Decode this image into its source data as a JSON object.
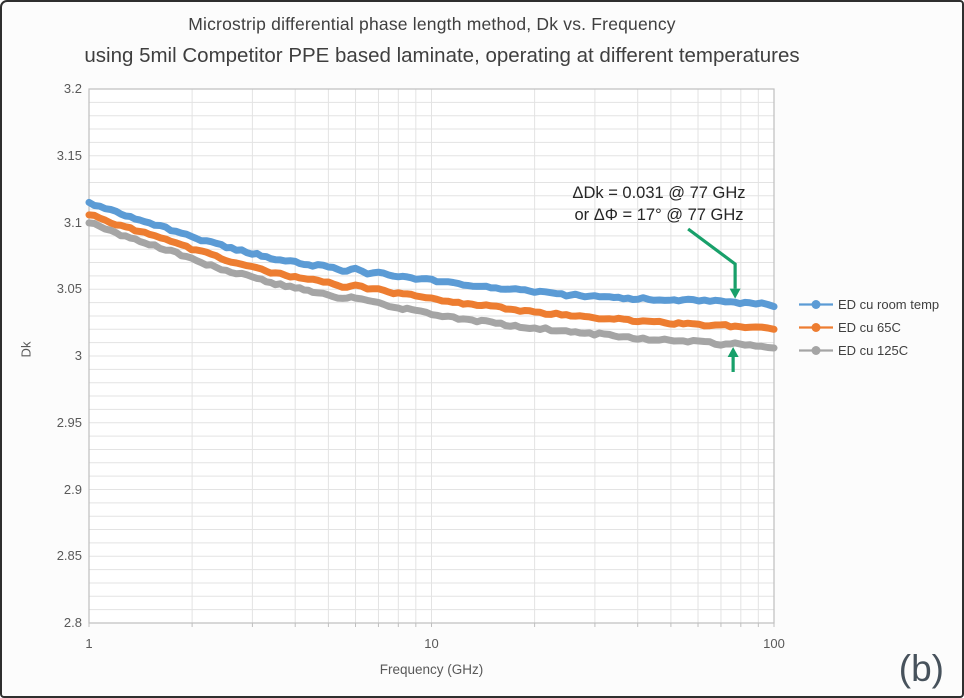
{
  "frame": {
    "corner_label": "(b)"
  },
  "chart_data": {
    "type": "line",
    "title": "Microstrip differential phase length method, Dk vs. Frequency",
    "subtitle": "using 5mil Competitor PPE based laminate, operating at different temperatures",
    "xlabel": "Frequency (GHz)",
    "ylabel": "Dk",
    "x_scale": "log",
    "xlim": [
      1,
      100
    ],
    "ylim": [
      2.8,
      3.2
    ],
    "x_ticks": [
      "1",
      "10",
      "100"
    ],
    "y_ticks": [
      "3.2",
      "3.15",
      "3.1",
      "3.05",
      "3",
      "2.95",
      "2.9",
      "2.85",
      "2.8"
    ],
    "grid": {
      "y_minor_step": 0.01,
      "x_minor_log": true,
      "line_color": "#e3e3e3",
      "border_color": "#bfbfbf"
    },
    "legend": {
      "position": "right"
    },
    "series": [
      {
        "name": "ED cu room temp",
        "color": "#5B9BD5",
        "points": [
          [
            1,
            3.115
          ],
          [
            1.2,
            3.108
          ],
          [
            1.5,
            3.1
          ],
          [
            1.8,
            3.093
          ],
          [
            2.2,
            3.086
          ],
          [
            2.6,
            3.081
          ],
          [
            3,
            3.077
          ],
          [
            3.5,
            3.073
          ],
          [
            4,
            3.07
          ],
          [
            4.5,
            3.068
          ],
          [
            5,
            3.067
          ],
          [
            5.5,
            3.064
          ],
          [
            6,
            3.065
          ],
          [
            6.5,
            3.062
          ],
          [
            7,
            3.063
          ],
          [
            7.5,
            3.06
          ],
          [
            8,
            3.06
          ],
          [
            9,
            3.058
          ],
          [
            10,
            3.057
          ],
          [
            12,
            3.054
          ],
          [
            14,
            3.052
          ],
          [
            17,
            3.05
          ],
          [
            20,
            3.048
          ],
          [
            24,
            3.046
          ],
          [
            28,
            3.045
          ],
          [
            33,
            3.044
          ],
          [
            40,
            3.043
          ],
          [
            48,
            3.042
          ],
          [
            56,
            3.042
          ],
          [
            65,
            3.041
          ],
          [
            70,
            3.041
          ],
          [
            77,
            3.04
          ],
          [
            85,
            3.04
          ],
          [
            92,
            3.039
          ],
          [
            100,
            3.037
          ]
        ]
      },
      {
        "name": "ED cu 65C",
        "color": "#ED7D31",
        "points": [
          [
            1,
            3.106
          ],
          [
            1.2,
            3.099
          ],
          [
            1.5,
            3.091
          ],
          [
            1.8,
            3.084
          ],
          [
            2.2,
            3.077
          ],
          [
            2.6,
            3.071
          ],
          [
            3,
            3.067
          ],
          [
            3.5,
            3.062
          ],
          [
            4,
            3.059
          ],
          [
            4.5,
            3.057
          ],
          [
            5,
            3.055
          ],
          [
            5.5,
            3.052
          ],
          [
            6,
            3.053
          ],
          [
            6.5,
            3.05
          ],
          [
            7,
            3.05
          ],
          [
            7.5,
            3.048
          ],
          [
            8,
            3.047
          ],
          [
            9,
            3.045
          ],
          [
            10,
            3.043
          ],
          [
            12,
            3.04
          ],
          [
            14,
            3.038
          ],
          [
            17,
            3.035
          ],
          [
            20,
            3.033
          ],
          [
            24,
            3.031
          ],
          [
            28,
            3.029
          ],
          [
            33,
            3.028
          ],
          [
            40,
            3.026
          ],
          [
            48,
            3.025
          ],
          [
            56,
            3.024
          ],
          [
            65,
            3.023
          ],
          [
            70,
            3.023
          ],
          [
            77,
            3.022
          ],
          [
            85,
            3.022
          ],
          [
            92,
            3.021
          ],
          [
            100,
            3.02
          ]
        ]
      },
      {
        "name": "ED cu 125C",
        "color": "#A5A5A5",
        "points": [
          [
            1,
            3.1
          ],
          [
            1.2,
            3.092
          ],
          [
            1.5,
            3.084
          ],
          [
            1.8,
            3.077
          ],
          [
            2.2,
            3.069
          ],
          [
            2.6,
            3.063
          ],
          [
            3,
            3.059
          ],
          [
            3.5,
            3.054
          ],
          [
            4,
            3.051
          ],
          [
            4.5,
            3.048
          ],
          [
            5,
            3.046
          ],
          [
            5.5,
            3.043
          ],
          [
            6,
            3.044
          ],
          [
            6.5,
            3.041
          ],
          [
            7,
            3.04
          ],
          [
            7.5,
            3.038
          ],
          [
            8,
            3.036
          ],
          [
            9,
            3.034
          ],
          [
            10,
            3.031
          ],
          [
            12,
            3.028
          ],
          [
            14,
            3.026
          ],
          [
            17,
            3.023
          ],
          [
            20,
            3.021
          ],
          [
            24,
            3.019
          ],
          [
            28,
            3.017
          ],
          [
            33,
            3.016
          ],
          [
            40,
            3.013
          ],
          [
            48,
            3.012
          ],
          [
            56,
            3.011
          ],
          [
            65,
            3.01
          ],
          [
            70,
            3.009
          ],
          [
            77,
            3.009
          ],
          [
            85,
            3.008
          ],
          [
            92,
            3.007
          ],
          [
            100,
            3.006
          ]
        ]
      }
    ],
    "annotation": {
      "line1": "ΔDk = 0.031 @ 77 GHz",
      "line2": "or ΔΦ = 17° @ 77 GHz",
      "arrow_ghz": 77,
      "arrow_color": "#18A06A"
    }
  }
}
